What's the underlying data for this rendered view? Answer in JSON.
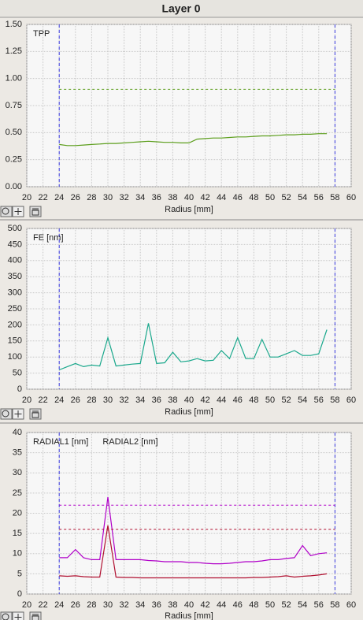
{
  "header": {
    "title": "Layer 0"
  },
  "chart_data": [
    {
      "type": "line",
      "xlabel": "Radius [mm]",
      "xlim": [
        20,
        60
      ],
      "xticks": [
        20,
        22,
        24,
        26,
        28,
        30,
        32,
        34,
        36,
        38,
        40,
        42,
        44,
        46,
        48,
        50,
        52,
        54,
        56,
        58,
        60
      ],
      "ylim": [
        0,
        1.5
      ],
      "yticks": [
        {
          "value": 0,
          "label": "0.00"
        },
        {
          "value": 0.25,
          "label": "0.25"
        },
        {
          "value": 0.5,
          "label": "0.50"
        },
        {
          "value": 0.75,
          "label": "0.75"
        },
        {
          "value": 1,
          "label": "1.00"
        },
        {
          "value": 1.25,
          "label": "1.25"
        },
        {
          "value": 1.5,
          "label": "1.50"
        }
      ],
      "grid": true,
      "xmarkers": [
        24,
        58
      ],
      "marker_color": "#3a3ae0",
      "x": [
        24,
        25,
        26,
        27,
        28,
        29,
        30,
        31,
        32,
        33,
        34,
        35,
        36,
        37,
        38,
        39,
        40,
        41,
        42,
        43,
        44,
        45,
        46,
        47,
        48,
        49,
        50,
        51,
        52,
        53,
        54,
        55,
        56,
        57
      ],
      "series": [
        {
          "name": "TPP",
          "color": "#5c9e1c",
          "limit": 0.9,
          "values": [
            0.39,
            0.38,
            0.38,
            0.385,
            0.39,
            0.395,
            0.4,
            0.4,
            0.405,
            0.41,
            0.415,
            0.42,
            0.415,
            0.41,
            0.41,
            0.405,
            0.405,
            0.44,
            0.445,
            0.45,
            0.45,
            0.455,
            0.46,
            0.46,
            0.465,
            0.47,
            0.47,
            0.475,
            0.48,
            0.48,
            0.485,
            0.485,
            0.49,
            0.49
          ]
        }
      ]
    },
    {
      "type": "line",
      "xlabel": "Radius [mm]",
      "xlim": [
        20,
        60
      ],
      "xticks": [
        20,
        22,
        24,
        26,
        28,
        30,
        32,
        34,
        36,
        38,
        40,
        42,
        44,
        46,
        48,
        50,
        52,
        54,
        56,
        58,
        60
      ],
      "ylim": [
        0,
        500
      ],
      "yticks": [
        0,
        50,
        100,
        150,
        200,
        250,
        300,
        350,
        400,
        450,
        500
      ],
      "grid": true,
      "xmarkers": [
        24,
        58
      ],
      "marker_color": "#3a3ae0",
      "x": [
        24,
        25,
        26,
        27,
        28,
        29,
        30,
        31,
        32,
        33,
        34,
        35,
        36,
        37,
        38,
        39,
        40,
        41,
        42,
        43,
        44,
        45,
        46,
        47,
        48,
        49,
        50,
        51,
        52,
        53,
        54,
        55,
        56,
        57
      ],
      "series": [
        {
          "name": "FE [nm]",
          "color": "#1aa88c",
          "values": [
            60,
            70,
            80,
            70,
            75,
            72,
            160,
            72,
            75,
            78,
            80,
            205,
            80,
            82,
            115,
            85,
            88,
            95,
            88,
            90,
            120,
            95,
            160,
            95,
            95,
            155,
            100,
            100,
            110,
            120,
            105,
            105,
            110,
            185
          ]
        }
      ]
    },
    {
      "type": "line",
      "xlabel": "Radius [mm]",
      "xlim": [
        20,
        60
      ],
      "xticks": [
        20,
        22,
        24,
        26,
        28,
        30,
        32,
        34,
        36,
        38,
        40,
        42,
        44,
        46,
        48,
        50,
        52,
        54,
        56,
        58,
        60
      ],
      "ylim": [
        0,
        40
      ],
      "yticks": [
        0,
        5,
        10,
        15,
        20,
        25,
        30,
        35,
        40
      ],
      "grid": true,
      "xmarkers": [
        24,
        58
      ],
      "marker_color": "#3a3ae0",
      "x": [
        24,
        25,
        26,
        27,
        28,
        29,
        30,
        31,
        32,
        33,
        34,
        35,
        36,
        37,
        38,
        39,
        40,
        41,
        42,
        43,
        44,
        45,
        46,
        47,
        48,
        49,
        50,
        51,
        52,
        53,
        54,
        55,
        56,
        57
      ],
      "series": [
        {
          "name": "RADIAL1 [nm]",
          "color": "#b000c8",
          "limit": 22,
          "values": [
            9,
            9,
            11,
            9,
            8.5,
            8.5,
            24,
            8.5,
            8.5,
            8.5,
            8.5,
            8.3,
            8.2,
            8,
            8,
            8,
            7.8,
            7.8,
            7.6,
            7.5,
            7.5,
            7.6,
            7.8,
            8,
            8,
            8.2,
            8.5,
            8.5,
            8.8,
            9,
            12,
            9.5,
            10,
            10.2
          ]
        },
        {
          "name": "RADIAL2 [nm]",
          "color": "#b01030",
          "limit": 16,
          "values": [
            4.5,
            4.4,
            4.5,
            4.3,
            4.2,
            4.2,
            17,
            4.2,
            4.1,
            4.1,
            4,
            4,
            4,
            4,
            4,
            4,
            4,
            4,
            4,
            4,
            4,
            4,
            4,
            4,
            4.1,
            4.1,
            4.2,
            4.3,
            4.5,
            4.2,
            4.4,
            4.5,
            4.7,
            5
          ]
        }
      ]
    }
  ]
}
